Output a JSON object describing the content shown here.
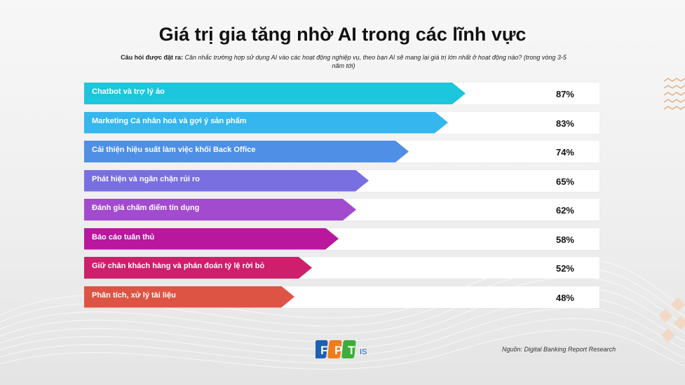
{
  "title": "Giá trị gia tăng nhờ AI trong các lĩnh vực",
  "question": {
    "label": "Câu hỏi được đặt ra:",
    "text": "Cân nhắc trường hợp sử dụng AI vào các hoạt động nghiệp vụ, theo bạn AI sẽ mang lại giá trị lớn nhất ở hoạt động nào? (trong vòng 3-5 năm tới)"
  },
  "source": "Nguồn: Digital Banking Report Research",
  "logo": {
    "letters": [
      "F",
      "P",
      "T"
    ],
    "suffix": "IS"
  },
  "chart_data": {
    "type": "bar",
    "orientation": "horizontal",
    "categories": [
      "Chatbot và trợ lý ảo",
      "Marketing Cá nhân hoá và gợi ý sản phẩm",
      "Cải thiện hiệu suất làm việc khối Back Office",
      "Phát hiện và ngăn chặn rủi ro",
      "Đánh giá chấm điểm tín dụng",
      "Báo cáo tuân thủ",
      "Giữ chân khách hàng và phán đoán tỷ lệ rời bỏ",
      "Phân tích, xử lý tài liệu"
    ],
    "values": [
      87,
      83,
      74,
      65,
      62,
      58,
      52,
      48
    ],
    "value_labels": [
      "87%",
      "83%",
      "74%",
      "65%",
      "62%",
      "58%",
      "52%",
      "48%"
    ],
    "colors": [
      "#1cc6dc",
      "#35b6ee",
      "#4f8fe6",
      "#7a6fe0",
      "#a24bcf",
      "#b8179e",
      "#cd1f6c",
      "#de5444"
    ],
    "xlim": [
      0,
      100
    ]
  }
}
